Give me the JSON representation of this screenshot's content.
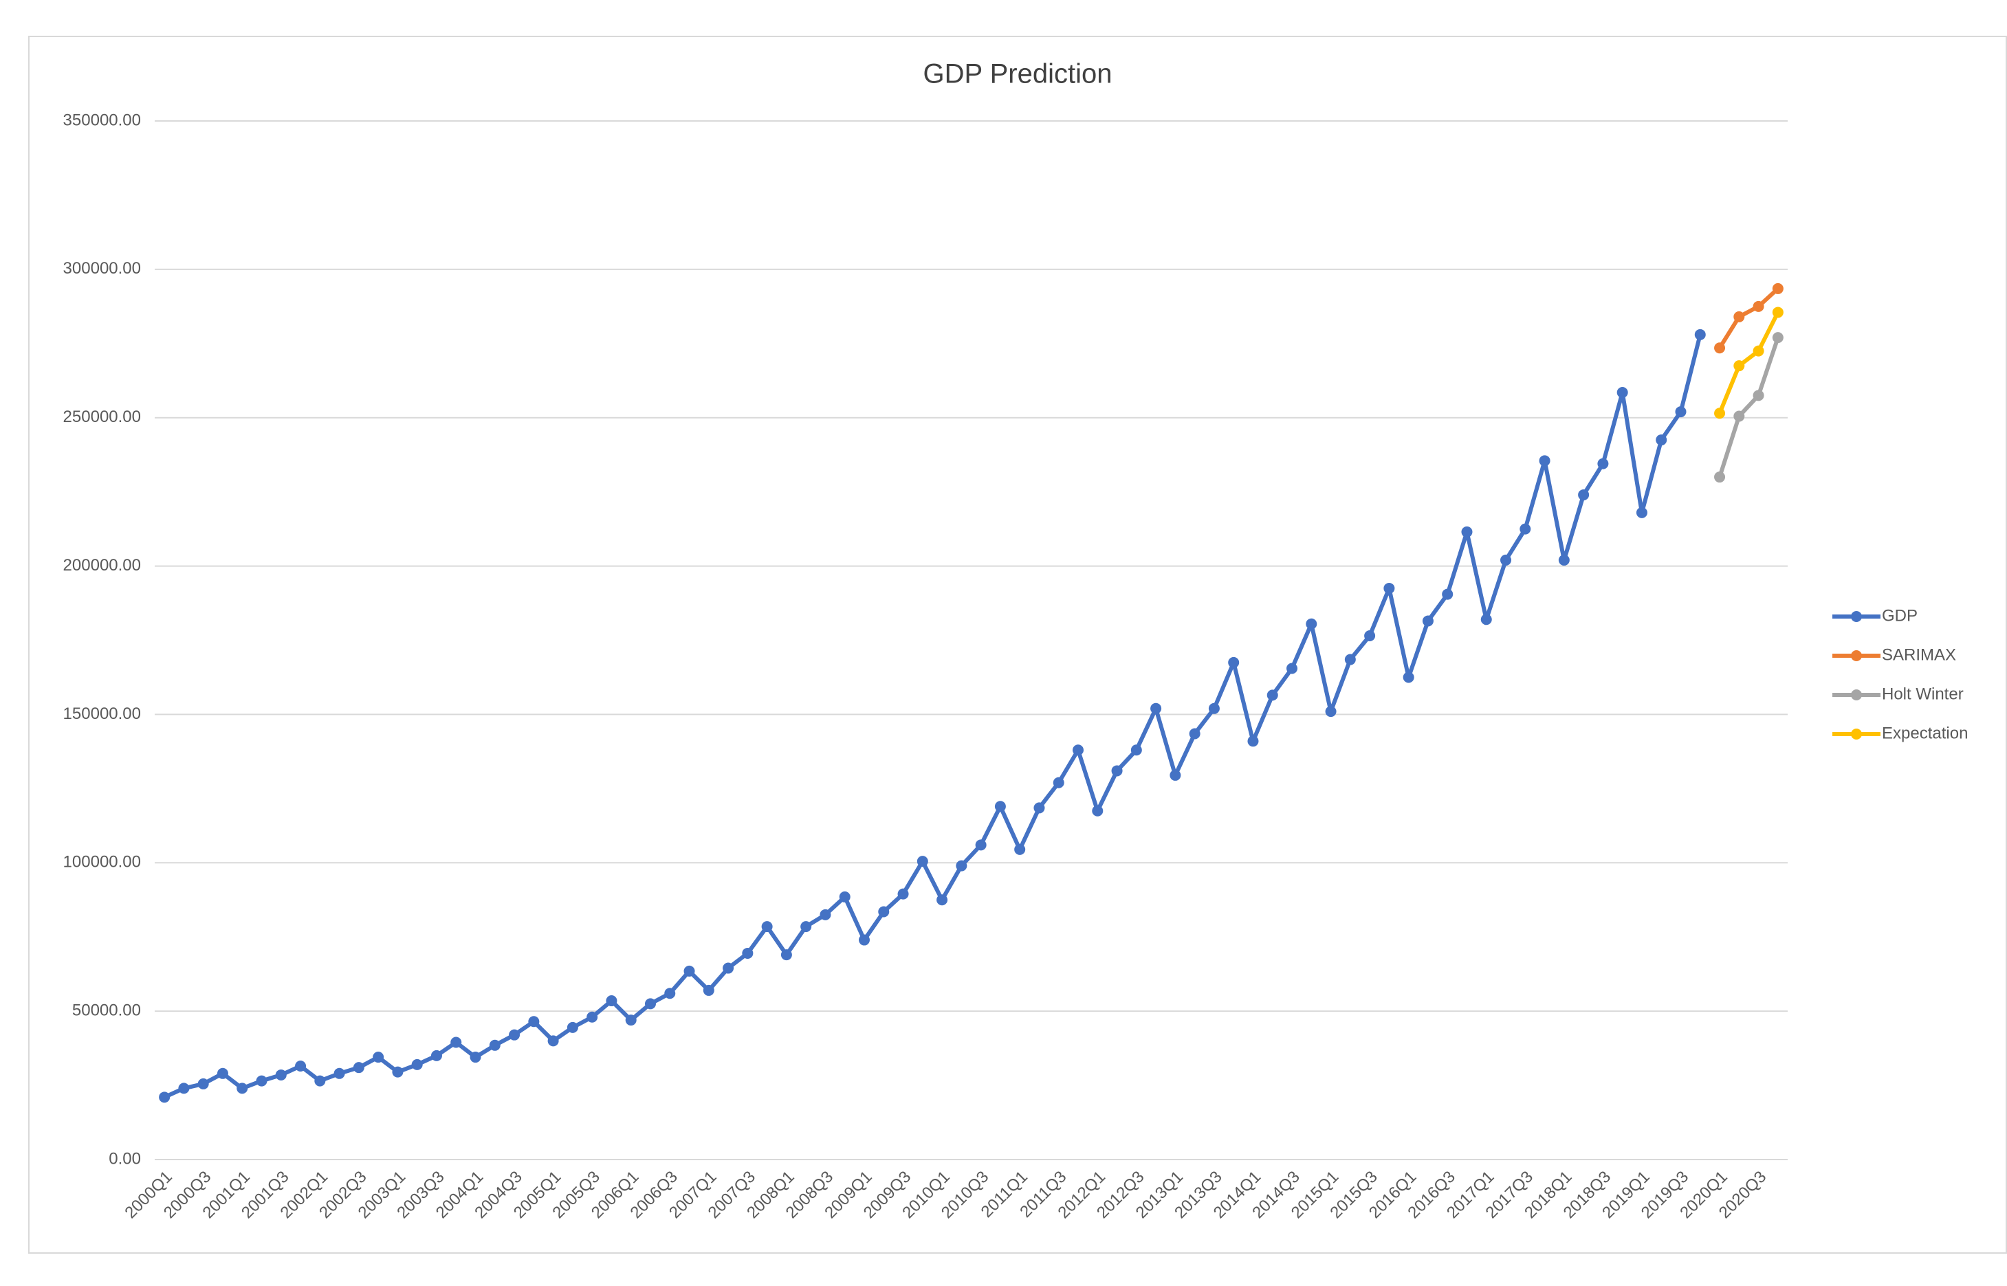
{
  "chart_data": {
    "type": "line",
    "title": "GDP Prediction",
    "categories": [
      "2000Q1",
      null,
      "2000Q3",
      null,
      "2001Q1",
      null,
      "2001Q3",
      null,
      "2002Q1",
      null,
      "2002Q3",
      null,
      "2003Q1",
      null,
      "2003Q3",
      null,
      "2004Q1",
      null,
      "2004Q3",
      null,
      "2005Q1",
      null,
      "2005Q3",
      null,
      "2006Q1",
      null,
      "2006Q3",
      null,
      "2007Q1",
      null,
      "2007Q3",
      null,
      "2008Q1",
      null,
      "2008Q3",
      null,
      "2009Q1",
      null,
      "2009Q3",
      null,
      "2010Q1",
      null,
      "2010Q3",
      null,
      "2011Q1",
      null,
      "2011Q3",
      null,
      "2012Q1",
      null,
      "2012Q3",
      null,
      "2013Q1",
      null,
      "2013Q3",
      null,
      "2014Q1",
      null,
      "2014Q3",
      null,
      "2015Q1",
      null,
      "2015Q3",
      null,
      "2016Q1",
      null,
      "2016Q3",
      null,
      "2017Q1",
      null,
      "2017Q3",
      null,
      "2018Q1",
      null,
      "2018Q3",
      null,
      "2019Q1",
      null,
      "2019Q3",
      null,
      "2020Q1",
      null,
      "2020Q3",
      null
    ],
    "series": [
      {
        "name": "GDP",
        "color": "#4472c4",
        "values": [
          21000,
          24000,
          25500,
          29000,
          24000,
          26500,
          28500,
          31500,
          26500,
          29000,
          31000,
          34500,
          29500,
          32000,
          35000,
          39500,
          34500,
          38500,
          42000,
          46500,
          40000,
          44500,
          48000,
          53500,
          47000,
          52500,
          56000,
          63500,
          57000,
          64500,
          69500,
          78500,
          69000,
          78500,
          82500,
          88500,
          74000,
          83500,
          89500,
          100500,
          87500,
          99000,
          106000,
          119000,
          104500,
          118500,
          127000,
          138000,
          117500,
          131000,
          138000,
          152000,
          129500,
          143500,
          152000,
          167500,
          141000,
          156500,
          165500,
          180500,
          151000,
          168500,
          176500,
          192500,
          162500,
          181500,
          190500,
          211500,
          182000,
          202000,
          212500,
          235500,
          202000,
          224000,
          234500,
          258500,
          218000,
          242500,
          252000,
          278000,
          null,
          null,
          null,
          null
        ]
      },
      {
        "name": "SARIMAX",
        "color": "#ed7d31",
        "values": [
          null,
          null,
          null,
          null,
          null,
          null,
          null,
          null,
          null,
          null,
          null,
          null,
          null,
          null,
          null,
          null,
          null,
          null,
          null,
          null,
          null,
          null,
          null,
          null,
          null,
          null,
          null,
          null,
          null,
          null,
          null,
          null,
          null,
          null,
          null,
          null,
          null,
          null,
          null,
          null,
          null,
          null,
          null,
          null,
          null,
          null,
          null,
          null,
          null,
          null,
          null,
          null,
          null,
          null,
          null,
          null,
          null,
          null,
          null,
          null,
          null,
          null,
          null,
          null,
          null,
          null,
          null,
          null,
          null,
          null,
          null,
          null,
          null,
          null,
          null,
          null,
          null,
          null,
          null,
          null,
          273500,
          284000,
          287500,
          293500
        ]
      },
      {
        "name": "Holt Winter",
        "color": "#a5a5a5",
        "values": [
          null,
          null,
          null,
          null,
          null,
          null,
          null,
          null,
          null,
          null,
          null,
          null,
          null,
          null,
          null,
          null,
          null,
          null,
          null,
          null,
          null,
          null,
          null,
          null,
          null,
          null,
          null,
          null,
          null,
          null,
          null,
          null,
          null,
          null,
          null,
          null,
          null,
          null,
          null,
          null,
          null,
          null,
          null,
          null,
          null,
          null,
          null,
          null,
          null,
          null,
          null,
          null,
          null,
          null,
          null,
          null,
          null,
          null,
          null,
          null,
          null,
          null,
          null,
          null,
          null,
          null,
          null,
          null,
          null,
          null,
          null,
          null,
          null,
          null,
          null,
          null,
          null,
          null,
          null,
          null,
          230000,
          250500,
          257500,
          277000
        ]
      },
      {
        "name": "Expectation",
        "color": "#ffc000",
        "values": [
          null,
          null,
          null,
          null,
          null,
          null,
          null,
          null,
          null,
          null,
          null,
          null,
          null,
          null,
          null,
          null,
          null,
          null,
          null,
          null,
          null,
          null,
          null,
          null,
          null,
          null,
          null,
          null,
          null,
          null,
          null,
          null,
          null,
          null,
          null,
          null,
          null,
          null,
          null,
          null,
          null,
          null,
          null,
          null,
          null,
          null,
          null,
          null,
          null,
          null,
          null,
          null,
          null,
          null,
          null,
          null,
          null,
          null,
          null,
          null,
          null,
          null,
          null,
          null,
          null,
          null,
          null,
          null,
          null,
          null,
          null,
          null,
          null,
          null,
          null,
          null,
          null,
          null,
          null,
          null,
          251500,
          267500,
          272500,
          285500
        ]
      }
    ],
    "ylim": [
      0,
      350000
    ],
    "yticks": [
      {
        "value": 0,
        "label": "0.00"
      },
      {
        "value": 50000,
        "label": "50000.00"
      },
      {
        "value": 100000,
        "label": "100000.00"
      },
      {
        "value": 150000,
        "label": "150000.00"
      },
      {
        "value": 200000,
        "label": "200000.00"
      },
      {
        "value": 250000,
        "label": "250000.00"
      },
      {
        "value": 300000,
        "label": "300000.00"
      },
      {
        "value": 350000,
        "label": "350000.00"
      }
    ],
    "grid": true,
    "legend": "right"
  }
}
